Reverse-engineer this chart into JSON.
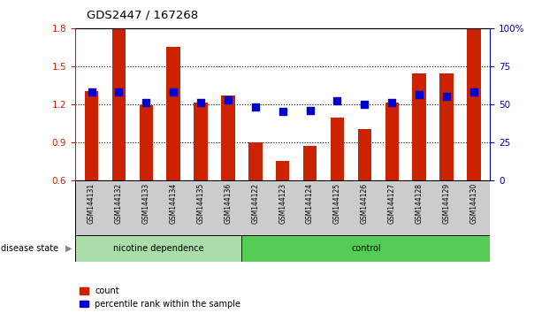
{
  "title": "GDS2447 / 167268",
  "samples": [
    "GSM144131",
    "GSM144132",
    "GSM144133",
    "GSM144134",
    "GSM144135",
    "GSM144136",
    "GSM144122",
    "GSM144123",
    "GSM144124",
    "GSM144125",
    "GSM144126",
    "GSM144127",
    "GSM144128",
    "GSM144129",
    "GSM144130"
  ],
  "counts": [
    1.3,
    1.8,
    1.19,
    1.65,
    1.21,
    1.27,
    0.9,
    0.75,
    0.87,
    1.09,
    1.0,
    1.21,
    1.44,
    1.44,
    1.79
  ],
  "percentiles": [
    58,
    58,
    51,
    58,
    51,
    53,
    48,
    45,
    46,
    52,
    50,
    51,
    56,
    55,
    58
  ],
  "baseline": 0.6,
  "ylim_left": [
    0.6,
    1.8
  ],
  "ylim_right": [
    0,
    100
  ],
  "yticks_left": [
    0.6,
    0.9,
    1.2,
    1.5,
    1.8
  ],
  "yticks_right": [
    0,
    25,
    50,
    75,
    100
  ],
  "bar_color": "#cc2200",
  "dot_color": "#0000cc",
  "group1_label": "nicotine dependence",
  "group2_label": "control",
  "group1_color": "#aaddaa",
  "group2_color": "#55cc55",
  "group1_count": 6,
  "xlabel_row_bg": "#cccccc",
  "disease_state_label": "disease state",
  "legend_count_label": "count",
  "legend_pct_label": "percentile rank within the sample",
  "right_axis_label_color": "#0000bb",
  "left_axis_label_color": "#cc2200",
  "dot_size": 28,
  "bar_width": 0.5,
  "fig_width": 6.3,
  "fig_height": 3.54,
  "dpi": 100
}
